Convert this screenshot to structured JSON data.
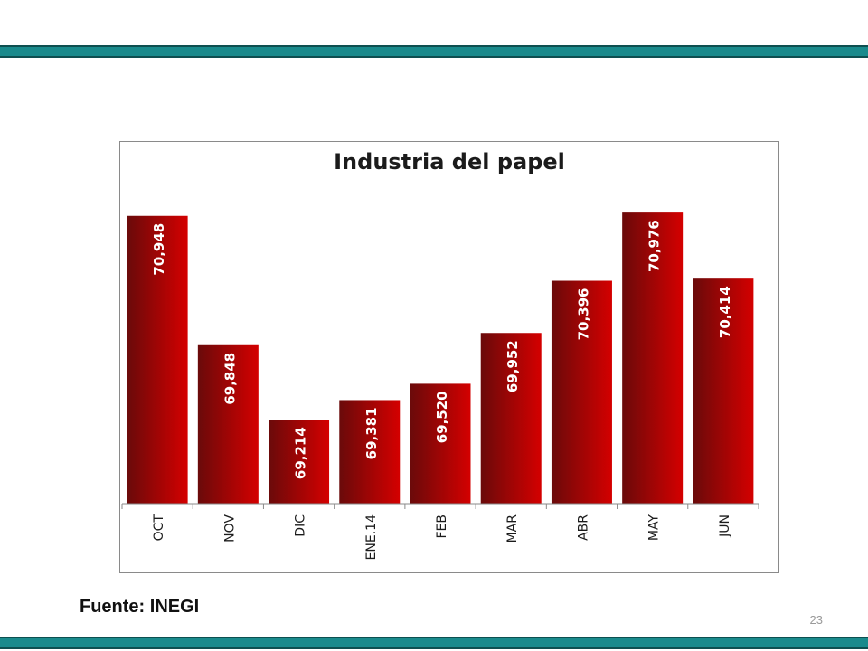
{
  "slide": {
    "source": "Fuente: INEGI",
    "page_number": "23",
    "accent_color": "#1a8a8c"
  },
  "chart_data": {
    "type": "bar",
    "title": "Industria del papel",
    "xlabel": "",
    "ylabel": "",
    "categories": [
      "OCT",
      "NOV",
      "DIC",
      "ENE.14",
      "FEB",
      "MAR",
      "ABR",
      "MAY",
      "JUN"
    ],
    "values": [
      70948,
      69848,
      69214,
      69381,
      69520,
      69952,
      70396,
      70976,
      70414
    ],
    "value_labels": [
      "70,948",
      "69,848",
      "69,214",
      "69,381",
      "69,520",
      "69,952",
      "70,396",
      "70,976",
      "70,414"
    ],
    "ylim": [
      68500,
      71100
    ],
    "grid": false,
    "legend": "none",
    "bar_color_dark": "#6a0a0a",
    "bar_color_light": "#d40000"
  }
}
